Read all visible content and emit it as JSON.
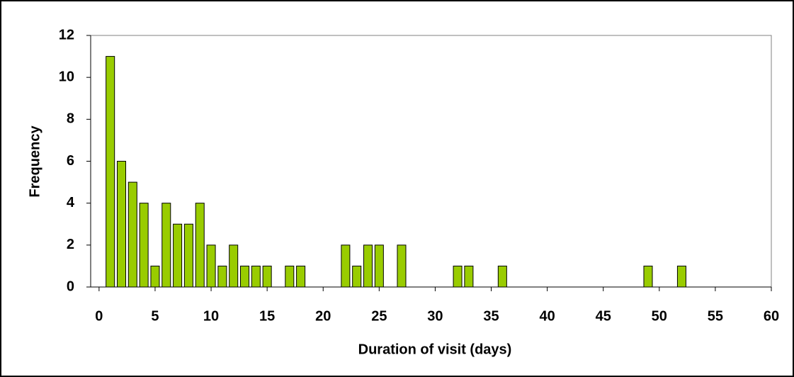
{
  "chart_data": {
    "type": "bar",
    "x_label": "Duration of visit (days)",
    "y_label": "Frequency",
    "x": [
      1,
      2,
      3,
      4,
      5,
      6,
      7,
      8,
      9,
      10,
      11,
      12,
      13,
      14,
      15,
      17,
      18,
      22,
      23,
      24,
      25,
      27,
      32,
      33,
      36,
      49,
      52
    ],
    "values": [
      11,
      6,
      5,
      4,
      1,
      4,
      3,
      3,
      4,
      2,
      1,
      2,
      1,
      1,
      1,
      1,
      1,
      2,
      1,
      2,
      2,
      2,
      1,
      1,
      1,
      1,
      1
    ],
    "color": "#99cc00",
    "xlim": [
      -0.75,
      60
    ],
    "xticks": [
      0,
      5,
      10,
      15,
      20,
      25,
      30,
      35,
      40,
      45,
      50,
      55,
      60
    ],
    "ylim": [
      0,
      12
    ],
    "yticks": [
      0,
      2,
      4,
      6,
      8,
      10,
      12
    ],
    "grid": false
  }
}
